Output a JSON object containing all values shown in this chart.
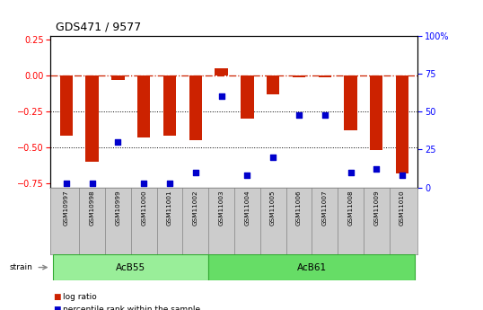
{
  "title": "GDS471 / 9577",
  "samples": [
    "GSM10997",
    "GSM10998",
    "GSM10999",
    "GSM11000",
    "GSM11001",
    "GSM11002",
    "GSM11003",
    "GSM11004",
    "GSM11005",
    "GSM11006",
    "GSM11007",
    "GSM11008",
    "GSM11009",
    "GSM11010"
  ],
  "log_ratio": [
    -0.42,
    -0.6,
    -0.03,
    -0.43,
    -0.42,
    -0.45,
    0.05,
    -0.3,
    -0.13,
    -0.01,
    -0.01,
    -0.38,
    -0.52,
    -0.68
  ],
  "percentile_rank": [
    3,
    3,
    30,
    3,
    3,
    10,
    60,
    8,
    20,
    48,
    48,
    10,
    12,
    8
  ],
  "groups": [
    {
      "label": "AcB55",
      "start": 0,
      "end": 5,
      "color": "#99ee99"
    },
    {
      "label": "AcB61",
      "start": 6,
      "end": 13,
      "color": "#66dd66"
    }
  ],
  "bar_color": "#cc2200",
  "dot_color": "#0000cc",
  "ylim_left": [
    -0.78,
    0.28
  ],
  "ylim_right": [
    0,
    100
  ],
  "yticks_left": [
    0.25,
    0.0,
    -0.25,
    -0.5,
    -0.75
  ],
  "yticks_right": [
    100,
    75,
    50,
    25,
    0
  ],
  "dotted_lines": [
    -0.25,
    -0.5
  ],
  "bar_width": 0.5,
  "legend_items": [
    {
      "color": "#cc2200",
      "label": "log ratio"
    },
    {
      "color": "#0000cc",
      "label": "percentile rank within the sample"
    }
  ]
}
